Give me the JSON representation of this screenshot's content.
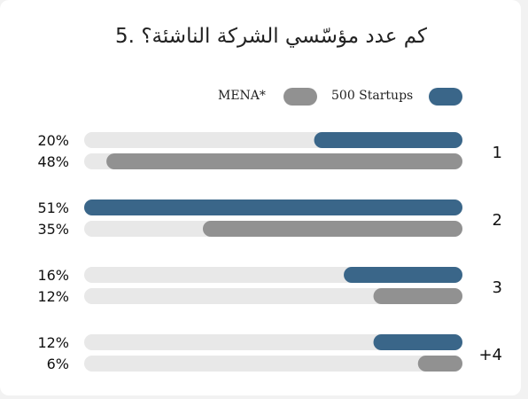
{
  "chart_data": {
    "type": "bar",
    "title": "5. كم عدد مؤسّسي الشركة الناشئة؟",
    "categories": [
      "1",
      "2",
      "3",
      "+4"
    ],
    "series": [
      {
        "name": "500 Startups",
        "values": [
          20,
          51,
          16,
          12
        ],
        "color": "#3a6689"
      },
      {
        "name": "MENA*",
        "values": [
          48,
          35,
          12,
          6
        ],
        "color": "#919191"
      }
    ],
    "value_labels": [
      [
        "20%",
        "48%"
      ],
      [
        "51%",
        "35%"
      ],
      [
        "16%",
        "12%"
      ],
      [
        "12%",
        "6%"
      ]
    ],
    "xlim": [
      0,
      51
    ],
    "orientation": "horizontal",
    "bar_direction": "right-to-left",
    "track_color": "#e8e8e8",
    "legend_position": "top"
  }
}
